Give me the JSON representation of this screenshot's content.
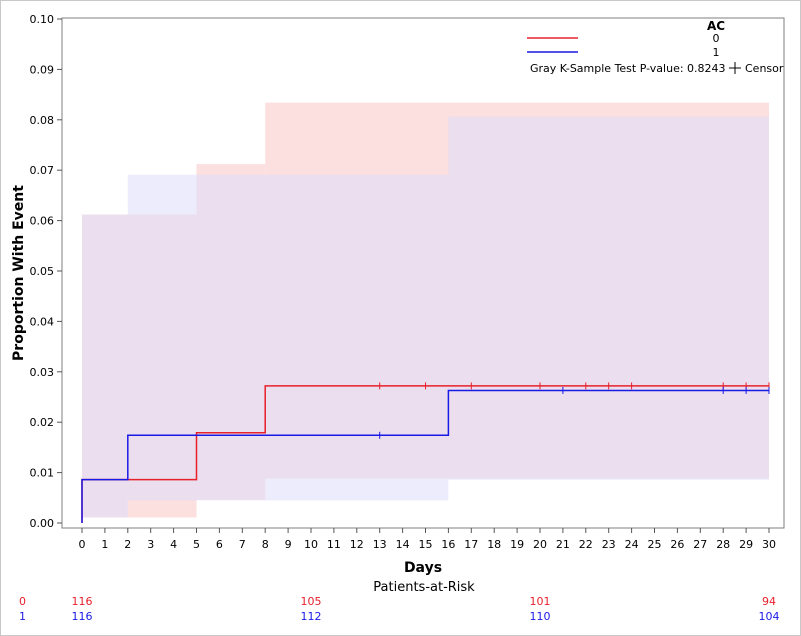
{
  "chart_data": {
    "type": "line",
    "step": true,
    "xlabel": "Days",
    "ylabel": "Proportion With Event",
    "xlim": [
      -1,
      31
    ],
    "ylim": [
      0,
      0.1
    ],
    "x_ticks": [
      0,
      1,
      2,
      3,
      4,
      5,
      6,
      7,
      8,
      9,
      10,
      11,
      12,
      13,
      14,
      15,
      16,
      17,
      18,
      19,
      20,
      21,
      22,
      23,
      24,
      25,
      26,
      27,
      28,
      29,
      30
    ],
    "y_ticks": [
      0.0,
      0.01,
      0.02,
      0.03,
      0.04,
      0.05,
      0.06,
      0.07,
      0.08,
      0.09,
      0.1
    ],
    "y_tick_labels": [
      "0.00",
      "0.01",
      "0.02",
      "0.03",
      "0.04",
      "0.05",
      "0.06",
      "0.07",
      "0.08",
      "0.09",
      "0.10"
    ],
    "legend": {
      "title": "AC",
      "position": "top-right",
      "test_text": "Gray K-Sample Test P-value: 0.8243",
      "censor_label": "Censor"
    },
    "series": [
      {
        "name": "0",
        "color": "#e8202a",
        "band_color": "#fbd4d4",
        "steps": [
          [
            0,
            0
          ],
          [
            0,
            0.0086
          ],
          [
            5,
            0.0086
          ],
          [
            5,
            0.0179
          ],
          [
            8,
            0.0179
          ],
          [
            8,
            0.0272
          ],
          [
            30,
            0.0272
          ]
        ],
        "band": [
          {
            "x0": 0,
            "x1": 2,
            "lo": 0.0011,
            "hi": 0.0612
          },
          {
            "x0": 2,
            "x1": 5,
            "lo": 0.0011,
            "hi": 0.0612
          },
          {
            "x0": 5,
            "x1": 8,
            "lo": 0.0046,
            "hi": 0.0712
          },
          {
            "x0": 8,
            "x1": 30,
            "lo": 0.0088,
            "hi": 0.0834
          }
        ],
        "censors": [
          13,
          15,
          17,
          20,
          22,
          23,
          24,
          28,
          29,
          30
        ]
      },
      {
        "name": "1",
        "color": "#1a1ae6",
        "band_color": "#dcdcfa",
        "steps": [
          [
            0,
            0
          ],
          [
            0,
            0.0086
          ],
          [
            2,
            0.0086
          ],
          [
            2,
            0.0174
          ],
          [
            16,
            0.0174
          ],
          [
            16,
            0.0263
          ],
          [
            30,
            0.0263
          ]
        ],
        "band": [
          {
            "x0": 0,
            "x1": 2,
            "lo": 0.0011,
            "hi": 0.0612
          },
          {
            "x0": 2,
            "x1": 16,
            "lo": 0.0045,
            "hi": 0.0691
          },
          {
            "x0": 16,
            "x1": 30,
            "lo": 0.0086,
            "hi": 0.0806
          }
        ],
        "censors": [
          13,
          21,
          28,
          29,
          30
        ]
      }
    ],
    "patients_at_risk": {
      "title": "Patients-at-Risk",
      "rows": [
        {
          "group": "0",
          "color": "#e8202a",
          "cells": [
            {
              "x": 0,
              "v": "116"
            },
            {
              "x": 10,
              "v": "105"
            },
            {
              "x": 20,
              "v": "101"
            },
            {
              "x": 30,
              "v": "94"
            }
          ]
        },
        {
          "group": "1",
          "color": "#1a1ae6",
          "cells": [
            {
              "x": 0,
              "v": "116"
            },
            {
              "x": 10,
              "v": "112"
            },
            {
              "x": 20,
              "v": "110"
            },
            {
              "x": 30,
              "v": "104"
            }
          ]
        }
      ]
    }
  }
}
